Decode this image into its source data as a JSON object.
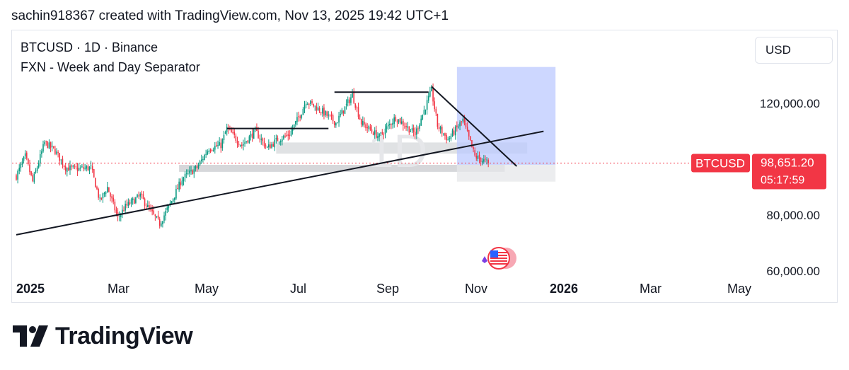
{
  "header": {
    "text": "sachin918367 created with TradingView.com, Nov 13, 2025 19:42 UTC+1"
  },
  "legend": {
    "symbol": "BTCUSD · 1D · Binance",
    "indicator": "FXN - Week and Day Separator"
  },
  "currency": "USD",
  "watermark": "1D",
  "brand": {
    "name": "TradingView",
    "icon": "tradingview-logo-icon"
  },
  "event_icon": "us-flag-icon",
  "chart_data": {
    "type": "candlestick",
    "symbol": "BTCUSD",
    "interval": "1D",
    "exchange": "Binance",
    "y_ticks": [
      60000,
      80000,
      120000
    ],
    "y_tick_labels": [
      "60,000.00",
      "80,000.00",
      "120,000.00"
    ],
    "ylim": [
      55000,
      140000
    ],
    "x_ticks": [
      "2025",
      "Mar",
      "May",
      "Jul",
      "Sep",
      "Nov",
      "2026",
      "Mar",
      "May"
    ],
    "x_bold_ticks": [
      "2025",
      "2026"
    ],
    "x_range": [
      "2025-01-01",
      "2026-05-01"
    ],
    "last_price": {
      "label": "BTCUSD",
      "value": 98651.2,
      "value_text": "98,651.20",
      "countdown": "05:17:59",
      "color": "#f23645"
    },
    "colors": {
      "up": "#089981",
      "down": "#f23645"
    },
    "price_path": [
      [
        "2025-01-01",
        94000
      ],
      [
        "2025-01-07",
        101000
      ],
      [
        "2025-01-12",
        92000
      ],
      [
        "2025-01-20",
        106000
      ],
      [
        "2025-01-27",
        103000
      ],
      [
        "2025-02-03",
        97000
      ],
      [
        "2025-02-10",
        96500
      ],
      [
        "2025-02-20",
        97000
      ],
      [
        "2025-02-26",
        85000
      ],
      [
        "2025-03-03",
        90000
      ],
      [
        "2025-03-10",
        79000
      ],
      [
        "2025-03-15",
        83000
      ],
      [
        "2025-03-25",
        87000
      ],
      [
        "2025-03-31",
        82000
      ],
      [
        "2025-04-07",
        77000
      ],
      [
        "2025-04-15",
        85000
      ],
      [
        "2025-04-22",
        93000
      ],
      [
        "2025-05-02",
        97000
      ],
      [
        "2025-05-10",
        104000
      ],
      [
        "2025-05-18",
        105000
      ],
      [
        "2025-05-22",
        111000
      ],
      [
        "2025-06-01",
        105000
      ],
      [
        "2025-06-10",
        110000
      ],
      [
        "2025-06-18",
        104000
      ],
      [
        "2025-06-25",
        107000
      ],
      [
        "2025-07-03",
        109000
      ],
      [
        "2025-07-11",
        117000
      ],
      [
        "2025-07-14",
        121000
      ],
      [
        "2025-07-25",
        117000
      ],
      [
        "2025-08-03",
        113000
      ],
      [
        "2025-08-14",
        123000
      ],
      [
        "2025-08-20",
        113000
      ],
      [
        "2025-09-01",
        108000
      ],
      [
        "2025-09-12",
        115000
      ],
      [
        "2025-09-25",
        109000
      ],
      [
        "2025-10-06",
        124500
      ],
      [
        "2025-10-10",
        112000
      ],
      [
        "2025-10-17",
        107000
      ],
      [
        "2025-10-27",
        114000
      ],
      [
        "2025-11-04",
        101000
      ],
      [
        "2025-11-13",
        98651
      ]
    ],
    "trend_lines": [
      {
        "from": [
          "2025-01-01",
          73000
        ],
        "to": [
          "2025-12-20",
          110000
        ]
      },
      {
        "from": [
          "2025-10-06",
          126000
        ],
        "to": [
          "2025-12-02",
          97500
        ]
      },
      {
        "from": [
          "2025-05-22",
          111000
        ],
        "to": [
          "2025-07-29",
          111000
        ]
      },
      {
        "from": [
          "2025-08-02",
          124000
        ],
        "to": [
          "2025-10-04",
          124000
        ]
      }
    ],
    "zones": [
      {
        "from": "2025-04-20",
        "to": "2025-11-24",
        "y1": 95500,
        "y2": 98000,
        "color": "#c8cace"
      },
      {
        "from": "2025-06-24",
        "to": "2025-12-09",
        "y1": 102000,
        "y2": 106000,
        "color": "#d6d8db"
      },
      {
        "from": "2025-10-23",
        "to": "2025-12-28",
        "y1": 98000,
        "y2": 133000,
        "color": "#bcc9ff"
      },
      {
        "from": "2025-10-23",
        "to": "2025-12-28",
        "y1": 92000,
        "y2": 98000,
        "color": "#e6e7ea"
      }
    ]
  }
}
